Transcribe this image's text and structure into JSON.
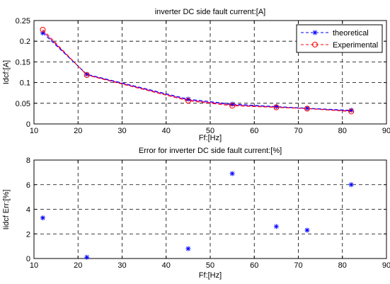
{
  "chart_data": [
    {
      "type": "line",
      "title": "inverter DC side fault current:[A]",
      "xlabel": "Ff:[Hz]",
      "ylabel": "Idcf:[A]",
      "xlim": [
        10,
        90
      ],
      "ylim": [
        0,
        0.25
      ],
      "x_ticks": [
        "10",
        "20",
        "30",
        "40",
        "50",
        "60",
        "70",
        "80",
        "90"
      ],
      "y_ticks": [
        "0",
        "0.05",
        "0.1",
        "0.15",
        "0.2",
        "0.25"
      ],
      "grid": "dashed",
      "legend_position": "top-right",
      "series": [
        {
          "name": "theoretical",
          "color": "#0000ff",
          "marker": "asterisk",
          "x": [
            12,
            22,
            45,
            55,
            65,
            72,
            82
          ],
          "y": [
            0.22,
            0.12,
            0.06,
            0.048,
            0.042,
            0.038,
            0.033
          ]
        },
        {
          "name": "Experimental",
          "color": "#ff0000",
          "marker": "circle",
          "x": [
            12,
            22,
            45,
            55,
            65,
            72,
            82
          ],
          "y": [
            0.228,
            0.118,
            0.056,
            0.044,
            0.04,
            0.037,
            0.03
          ]
        }
      ],
      "curve_color": "#aa00aa"
    },
    {
      "type": "scatter",
      "title": "Error for inverter DC side fault current:[%]",
      "xlabel": "Ff:[Hz]",
      "ylabel": "Iidcf Err:[%]",
      "xlim": [
        10,
        90
      ],
      "ylim": [
        0,
        8
      ],
      "x_ticks": [
        "10",
        "20",
        "30",
        "40",
        "50",
        "60",
        "70",
        "80",
        "90"
      ],
      "y_ticks": [
        "0",
        "2",
        "4",
        "6",
        "8"
      ],
      "grid": "dashed",
      "series": [
        {
          "color": "#0000ff",
          "marker": "asterisk",
          "x": [
            12,
            22,
            45,
            55,
            65,
            72,
            82
          ],
          "y": [
            3.3,
            0.1,
            0.8,
            6.9,
            2.6,
            2.3,
            6.0
          ]
        }
      ]
    }
  ]
}
